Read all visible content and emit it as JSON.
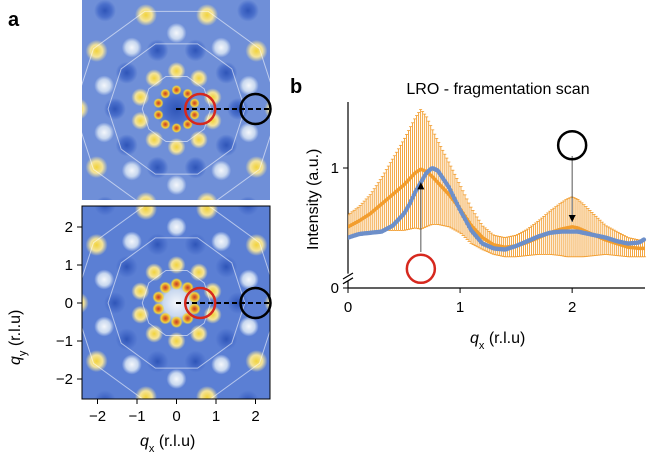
{
  "panel_a": {
    "letter": "a",
    "xlabel": {
      "sym": "q",
      "sub": "x",
      "unit": " (r.l.u)"
    },
    "ylabel": {
      "sym": "q",
      "sub": "y",
      "unit": " (r.l.u)"
    },
    "xticks": [
      "−2",
      "−1",
      "0",
      "1",
      "2"
    ],
    "yticks": [
      "2",
      "1",
      "0",
      "−1",
      "−2"
    ],
    "colormap": {
      "low": "#5b7fd4",
      "mid": "#dfe9f5",
      "high": "#f2d33c",
      "peak": "#e07b2a",
      "max": "#c23a2b"
    },
    "markers": [
      {
        "role": "fragment-circle",
        "color": "#d6281e",
        "qx": 0.6,
        "qy": 0
      },
      {
        "role": "lro-circle",
        "color": "#000000",
        "qx": 2.0,
        "qy": 0
      }
    ]
  },
  "chart_data": {
    "type": "line",
    "panel_letter": "b",
    "title": "LRO - fragmentation scan",
    "xlabel": {
      "sym": "q",
      "sub": "x",
      "unit": " (r.l.u)"
    },
    "ylabel": "Intensity (a.u.)",
    "xlim": [
      0,
      2.65
    ],
    "ylim": [
      0,
      1.55
    ],
    "xticks": [
      {
        "v": 0,
        "label": "0"
      },
      {
        "v": 1,
        "label": "1"
      },
      {
        "v": 2,
        "label": "2"
      }
    ],
    "yticks": [
      {
        "v": 0,
        "label": "0"
      },
      {
        "v": 1,
        "label": "1"
      }
    ],
    "axis_break": true,
    "grid": false,
    "series": [
      {
        "style": "orange-with-errorbars",
        "color": "#f29d2e",
        "x": [
          0.0,
          0.1,
          0.2,
          0.3,
          0.4,
          0.5,
          0.55,
          0.6,
          0.65,
          0.7,
          0.75,
          0.8,
          0.9,
          1.0,
          1.1,
          1.2,
          1.3,
          1.4,
          1.5,
          1.6,
          1.7,
          1.8,
          1.9,
          1.95,
          2.0,
          2.05,
          2.1,
          2.2,
          2.3,
          2.4,
          2.5,
          2.6,
          2.65
        ],
        "y": [
          0.51,
          0.56,
          0.62,
          0.7,
          0.78,
          0.86,
          0.91,
          0.96,
          0.99,
          0.97,
          0.93,
          0.88,
          0.78,
          0.66,
          0.52,
          0.42,
          0.36,
          0.34,
          0.35,
          0.38,
          0.42,
          0.46,
          0.49,
          0.5,
          0.51,
          0.5,
          0.48,
          0.44,
          0.4,
          0.37,
          0.34,
          0.33,
          0.33
        ],
        "err": [
          0.1,
          0.12,
          0.16,
          0.22,
          0.3,
          0.38,
          0.42,
          0.46,
          0.5,
          0.46,
          0.4,
          0.35,
          0.27,
          0.2,
          0.15,
          0.1,
          0.08,
          0.08,
          0.09,
          0.11,
          0.14,
          0.18,
          0.22,
          0.24,
          0.25,
          0.24,
          0.22,
          0.17,
          0.12,
          0.1,
          0.08,
          0.07,
          0.07
        ]
      },
      {
        "style": "blue-dotted",
        "color": "#6d8fc9",
        "x": [
          0.0,
          0.1,
          0.2,
          0.3,
          0.4,
          0.5,
          0.55,
          0.6,
          0.65,
          0.7,
          0.75,
          0.8,
          0.9,
          1.0,
          1.1,
          1.2,
          1.3,
          1.4,
          1.5,
          1.6,
          1.7,
          1.8,
          1.9,
          1.95,
          2.0,
          2.05,
          2.1,
          2.2,
          2.3,
          2.4,
          2.5,
          2.6,
          2.65
        ],
        "y": [
          0.42,
          0.45,
          0.46,
          0.47,
          0.52,
          0.62,
          0.7,
          0.8,
          0.88,
          0.96,
          1.0,
          0.98,
          0.84,
          0.65,
          0.48,
          0.37,
          0.33,
          0.32,
          0.35,
          0.39,
          0.43,
          0.46,
          0.47,
          0.47,
          0.47,
          0.47,
          0.46,
          0.44,
          0.42,
          0.39,
          0.37,
          0.38,
          0.41
        ]
      }
    ],
    "annotations": [
      {
        "role": "fragment-marker",
        "color": "#d6281e",
        "x": 0.65,
        "y_from": 0.3,
        "y_to": 0.88,
        "arrow": "up",
        "circle_y": 0.16
      },
      {
        "role": "lro-marker",
        "color": "#000000",
        "x": 2.0,
        "y_from": 1.1,
        "y_to": 0.55,
        "arrow": "down",
        "circle_y": 1.19
      }
    ]
  }
}
